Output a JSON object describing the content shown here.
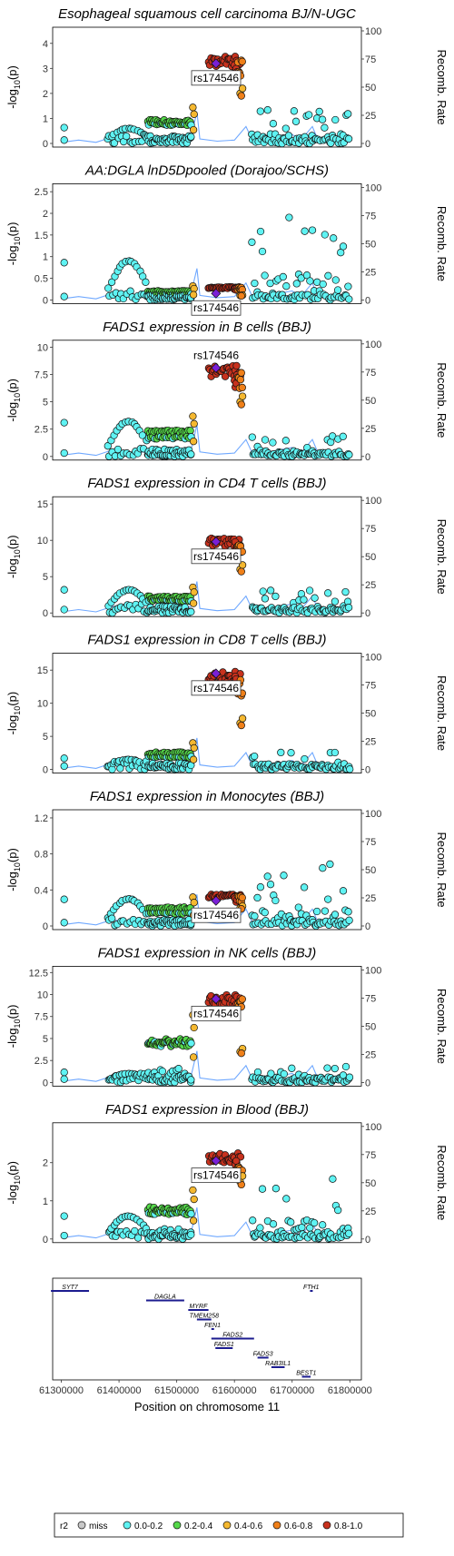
{
  "chart_data": {
    "type": "scatter",
    "region": "Regional association plot (LocusZoom)",
    "lead_snp": "rs174546",
    "xlabel": "Position on chromosome 11",
    "xlim": [
      61285000,
      61820000
    ],
    "xticks": [
      61300000,
      61400000,
      61500000,
      61600000,
      61700000,
      61800000
    ],
    "ylabel": "-log10(p)",
    "y2label": "Recomb. Rate",
    "y2ticks": [
      0,
      25,
      50,
      75,
      100
    ],
    "y2lim": [
      0,
      100
    ],
    "legend": {
      "title": "r2",
      "position": "bottom",
      "entries": [
        {
          "label": "miss",
          "color": "#c8c8c8"
        },
        {
          "label": "0.0-0.2",
          "color": "#5ff3f3"
        },
        {
          "label": "0.2-0.4",
          "color": "#55d94a"
        },
        {
          "label": "0.4-0.6",
          "color": "#f5b830"
        },
        {
          "label": "0.6-0.8",
          "color": "#f08019"
        },
        {
          "label": "0.8-1.0",
          "color": "#c8321e"
        }
      ]
    },
    "lead_color": "#7a1fd6",
    "recomb_color": "#6fa8ff",
    "panels": [
      {
        "title": "Esophageal squamous cell carcinoma BJ/N-UGC",
        "ylim": [
          0,
          4.5
        ],
        "yticks": [
          0,
          1,
          2,
          3,
          4
        ],
        "lead_y": 3.2,
        "top_max": 3.5,
        "mid_level": 0.9,
        "mid2_level": 0.8,
        "left_level": 0.6,
        "right_peak": 1.4,
        "orange_min": 2.0
      },
      {
        "title": "AA:DGLA lnD5Dpooled (Dorajoo/SCHS)",
        "ylim": [
          0,
          2.6
        ],
        "yticks": [
          0,
          0.5,
          1.0,
          1.5,
          2.0,
          2.5
        ],
        "lead_y": 0.15,
        "top_max": 0.3,
        "mid_level": 0.2,
        "mid2_level": 0.15,
        "left_level": 0.9,
        "right_peak": 2.0,
        "orange_min": 0.1
      },
      {
        "title": "FADS1 expression in B cells (BBJ)",
        "ylim": [
          0,
          10.3
        ],
        "yticks": [
          0,
          2.5,
          5.0,
          7.5,
          10.0
        ],
        "lead_y": 8.1,
        "top_max": 8.3,
        "mid_level": 2.3,
        "mid2_level": 1.8,
        "left_level": 3.2,
        "right_peak": 1.9,
        "orange_min": 5.0
      },
      {
        "title": "FADS1 expression in CD4 T cells (BBJ)",
        "ylim": [
          0,
          15.5
        ],
        "yticks": [
          0,
          5,
          10,
          15
        ],
        "lead_y": 9.8,
        "top_max": 10.3,
        "mid_level": 2.2,
        "mid2_level": 1.8,
        "left_level": 3.2,
        "right_peak": 3.2,
        "orange_min": 6.0
      },
      {
        "title": "FADS1 expression in CD8 T cells (BBJ)",
        "ylim": [
          0,
          17
        ],
        "yticks": [
          0,
          5,
          10,
          15
        ],
        "lead_y": 14.5,
        "top_max": 14.8,
        "mid_level": 2.5,
        "mid2_level": 2.0,
        "left_level": 1.5,
        "right_peak": 2.6,
        "orange_min": 7.0
      },
      {
        "title": "FADS1 expression in Monocytes (BBJ)",
        "ylim": [
          0,
          1.25
        ],
        "yticks": [
          0,
          0.4,
          0.8,
          1.2
        ],
        "lead_y": 0.28,
        "top_max": 0.35,
        "mid_level": 0.2,
        "mid2_level": 0.15,
        "left_level": 0.3,
        "right_peak": 0.7,
        "orange_min": 0.2
      },
      {
        "title": "FADS1 expression in NK cells (BBJ)",
        "ylim": [
          0,
          12.8
        ],
        "yticks": [
          0,
          2.5,
          5.0,
          7.5,
          10.0,
          12.5
        ],
        "lead_y": 9.5,
        "top_max": 10.0,
        "mid_level": 4.8,
        "mid2_level": 4.5,
        "left_level": 1.0,
        "right_peak": 1.8,
        "orange_min": 3.5
      },
      {
        "title": "FADS1 expression in Blood (BBJ)",
        "ylim": [
          0,
          2.95
        ],
        "yticks": [
          0,
          1,
          2
        ],
        "lead_y": 2.05,
        "top_max": 2.25,
        "mid_level": 0.8,
        "mid2_level": 0.7,
        "left_level": 0.6,
        "right_peak": 1.7,
        "orange_min": 1.5
      }
    ],
    "genes": [
      {
        "name": "SYT7",
        "start": 61282000,
        "end": 61348000,
        "row": 0
      },
      {
        "name": "DAGLA",
        "start": 61447000,
        "end": 61513000,
        "row": 1
      },
      {
        "name": "MYRF",
        "start": 61520000,
        "end": 61555000,
        "row": 2
      },
      {
        "name": "TMEM258",
        "start": 61535000,
        "end": 61560000,
        "row": 3
      },
      {
        "name": "FEN1",
        "start": 61560000,
        "end": 61564000,
        "row": 4
      },
      {
        "name": "FADS2",
        "start": 61560000,
        "end": 61634000,
        "row": 5
      },
      {
        "name": "FADS1",
        "start": 61567000,
        "end": 61597000,
        "row": 6
      },
      {
        "name": "FADS3",
        "start": 61640000,
        "end": 61659000,
        "row": 7
      },
      {
        "name": "RAB3IL1",
        "start": 61664000,
        "end": 61687000,
        "row": 8
      },
      {
        "name": "BEST1",
        "start": 61717000,
        "end": 61732000,
        "row": 9
      },
      {
        "name": "FTH1",
        "start": 61731000,
        "end": 61735000,
        "row": 0
      }
    ]
  }
}
